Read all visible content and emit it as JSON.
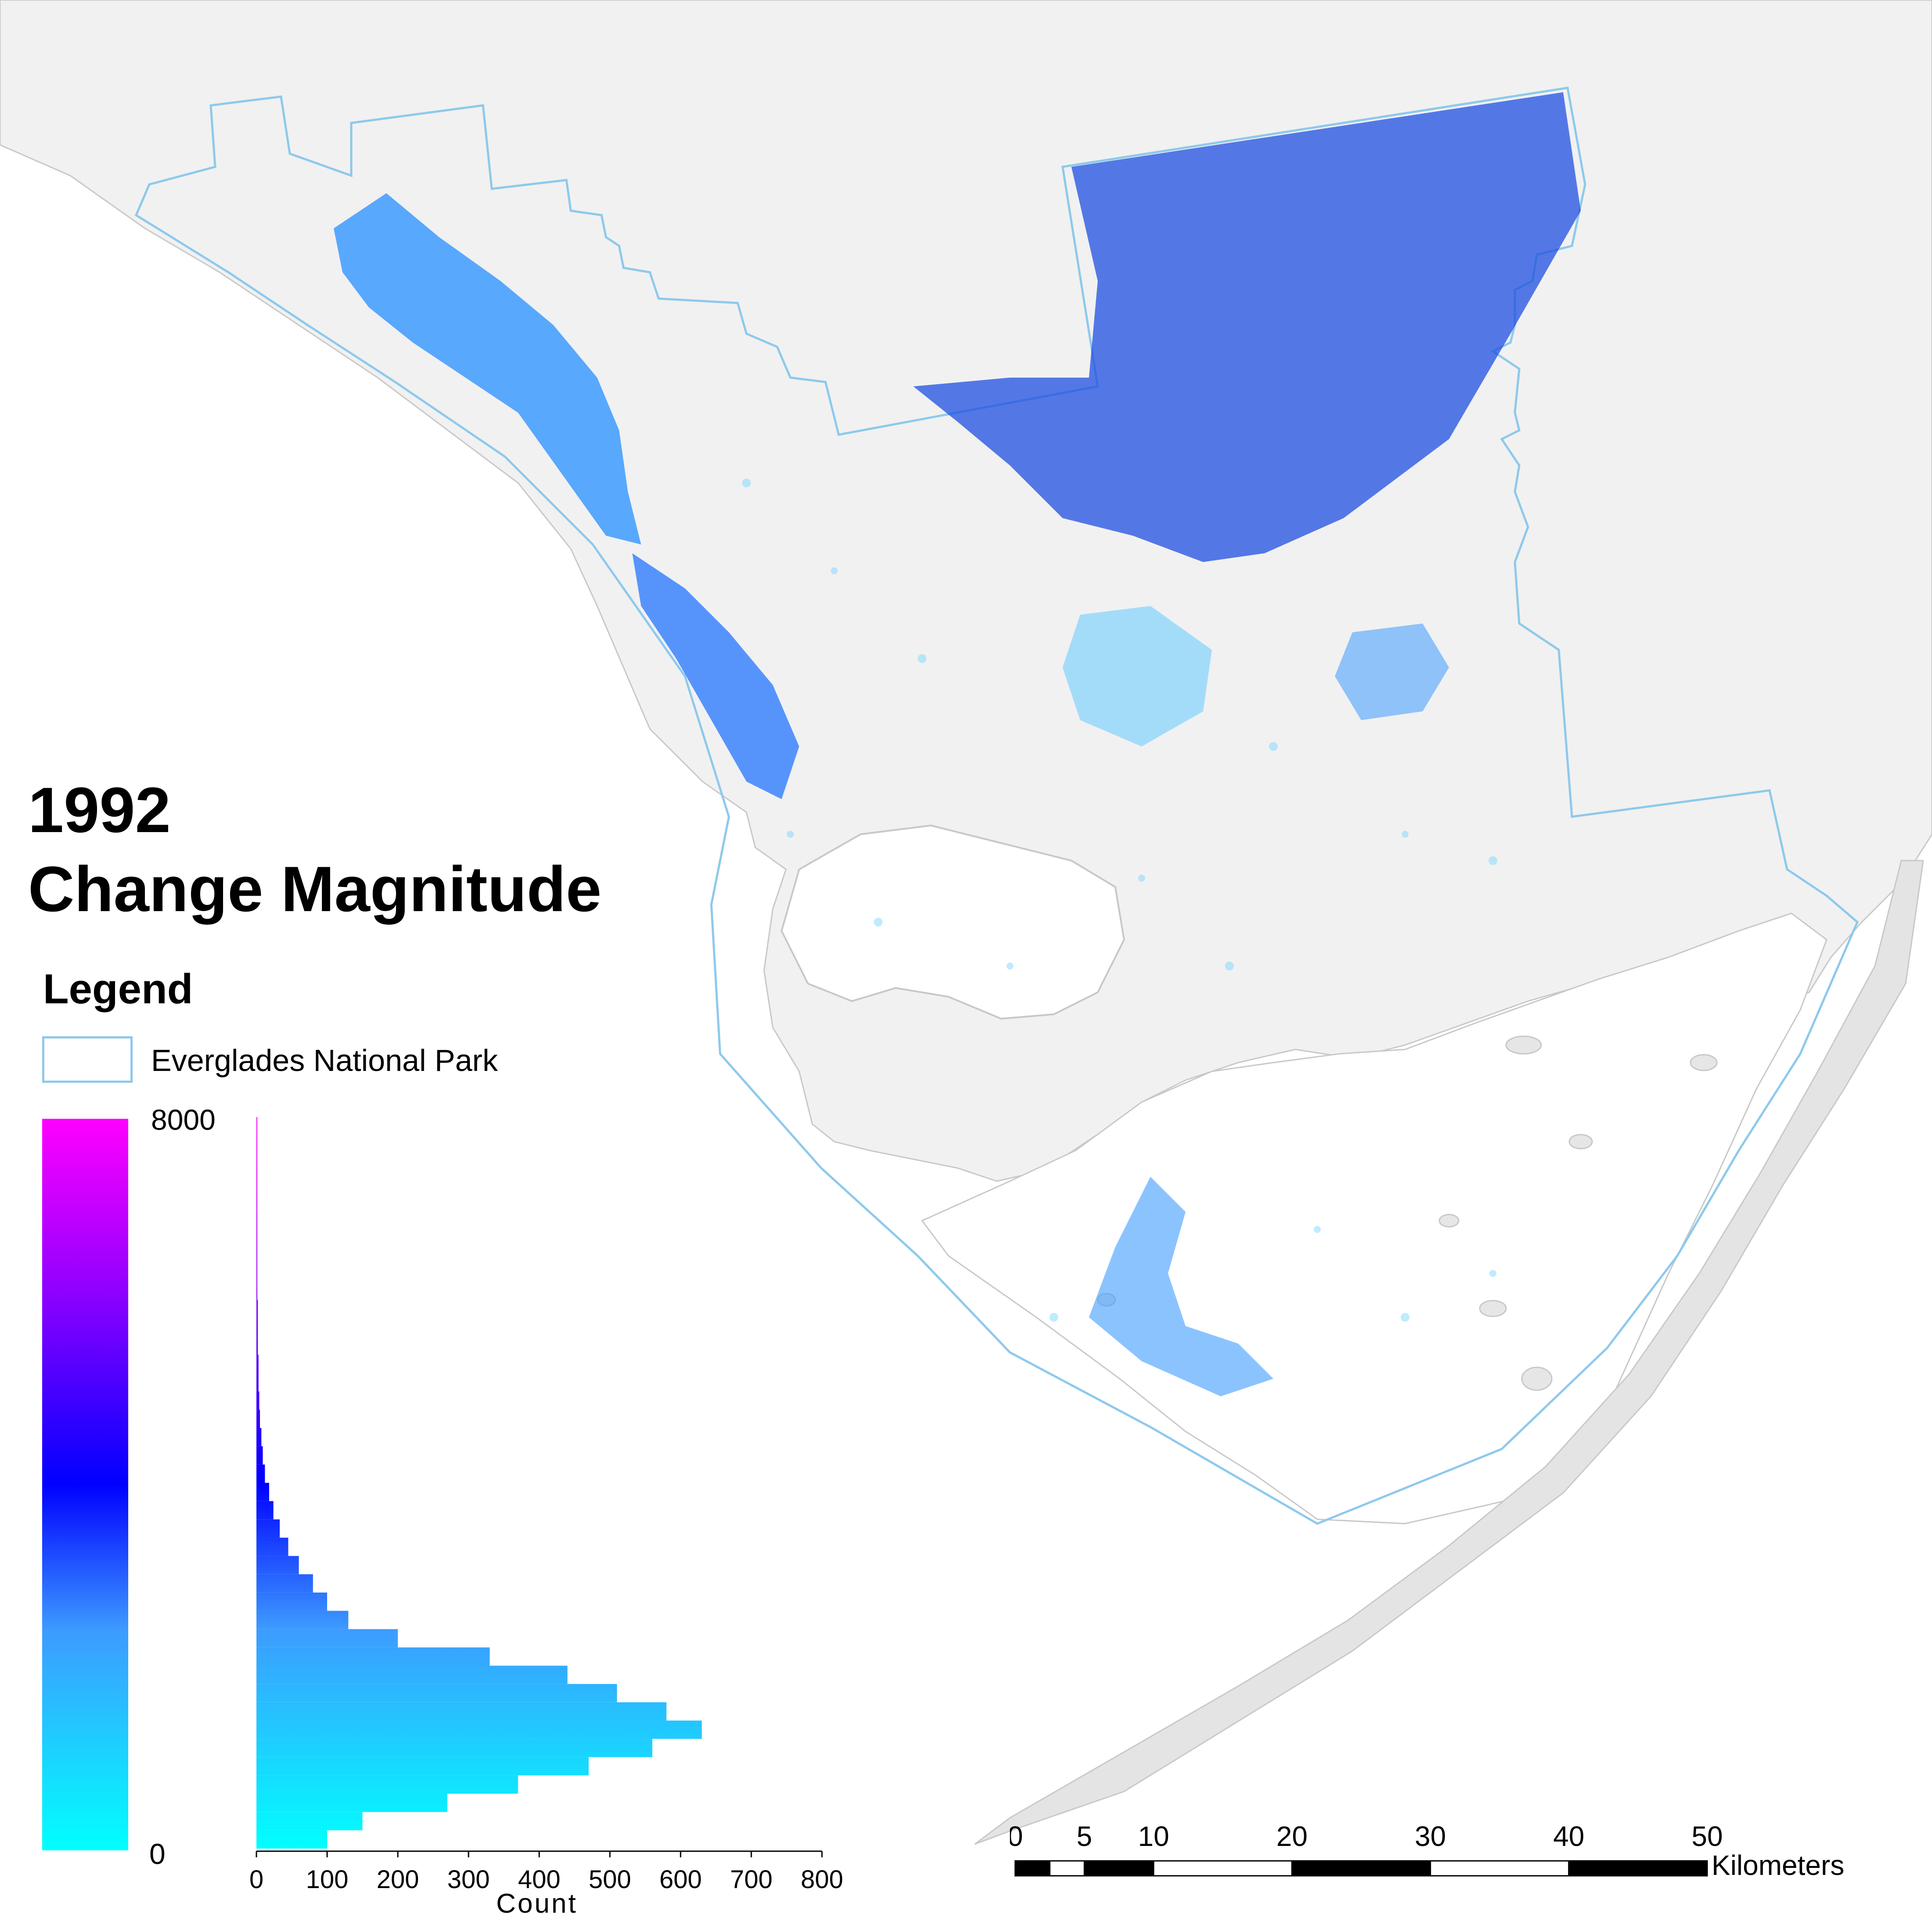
{
  "title": {
    "year": "1992",
    "subtitle": "Change Magnitude"
  },
  "legend": {
    "heading": "Legend",
    "park_label": "Everglades National Park",
    "ramp_max": "8000",
    "ramp_min": "0"
  },
  "colors": {
    "park_boundary": "#8ec9ec",
    "land_gray": "#f1f1f1",
    "ramp_low": "#00ffff",
    "ramp_mid": "#0000ff",
    "ramp_high": "#ff00ff"
  },
  "chart_data": {
    "type": "bar",
    "orientation": "horizontal",
    "xlabel": "Count",
    "x_ticks": [
      "0",
      "100",
      "200",
      "300",
      "400",
      "500",
      "600",
      "700",
      "800"
    ],
    "xlim": [
      0,
      800
    ],
    "ylim": [
      0,
      8000
    ],
    "bins": [
      {
        "magnitude": 100,
        "count": 100
      },
      {
        "magnitude": 300,
        "count": 150
      },
      {
        "magnitude": 500,
        "count": 270
      },
      {
        "magnitude": 700,
        "count": 370
      },
      {
        "magnitude": 900,
        "count": 470
      },
      {
        "magnitude": 1100,
        "count": 560
      },
      {
        "magnitude": 1300,
        "count": 630
      },
      {
        "magnitude": 1500,
        "count": 580
      },
      {
        "magnitude": 1700,
        "count": 510
      },
      {
        "magnitude": 1900,
        "count": 440
      },
      {
        "magnitude": 2100,
        "count": 330
      },
      {
        "magnitude": 2300,
        "count": 200
      },
      {
        "magnitude": 2500,
        "count": 130
      },
      {
        "magnitude": 2700,
        "count": 100
      },
      {
        "magnitude": 2900,
        "count": 80
      },
      {
        "magnitude": 3100,
        "count": 60
      },
      {
        "magnitude": 3300,
        "count": 45
      },
      {
        "magnitude": 3500,
        "count": 33
      },
      {
        "magnitude": 3700,
        "count": 24
      },
      {
        "magnitude": 3900,
        "count": 18
      },
      {
        "magnitude": 4100,
        "count": 12
      },
      {
        "magnitude": 4300,
        "count": 9
      },
      {
        "magnitude": 4500,
        "count": 7
      },
      {
        "magnitude": 4700,
        "count": 5
      },
      {
        "magnitude": 4900,
        "count": 4
      },
      {
        "magnitude": 5100,
        "count": 3
      },
      {
        "magnitude": 5300,
        "count": 3
      },
      {
        "magnitude": 5500,
        "count": 2
      },
      {
        "magnitude": 5700,
        "count": 2
      },
      {
        "magnitude": 5900,
        "count": 2
      },
      {
        "magnitude": 6100,
        "count": 1
      },
      {
        "magnitude": 6300,
        "count": 1
      },
      {
        "magnitude": 6500,
        "count": 1
      },
      {
        "magnitude": 6700,
        "count": 1
      },
      {
        "magnitude": 6900,
        "count": 1
      },
      {
        "magnitude": 7100,
        "count": 1
      },
      {
        "magnitude": 7300,
        "count": 1
      },
      {
        "magnitude": 7500,
        "count": 1
      },
      {
        "magnitude": 7700,
        "count": 1
      },
      {
        "magnitude": 7900,
        "count": 1
      }
    ]
  },
  "scale_bar": {
    "ticks": [
      "0",
      "5",
      "10",
      "20",
      "30",
      "40",
      "50"
    ],
    "tick_values": [
      0,
      2.5,
      5,
      10,
      20,
      30,
      40,
      50
    ],
    "unit": "Kilometers"
  }
}
